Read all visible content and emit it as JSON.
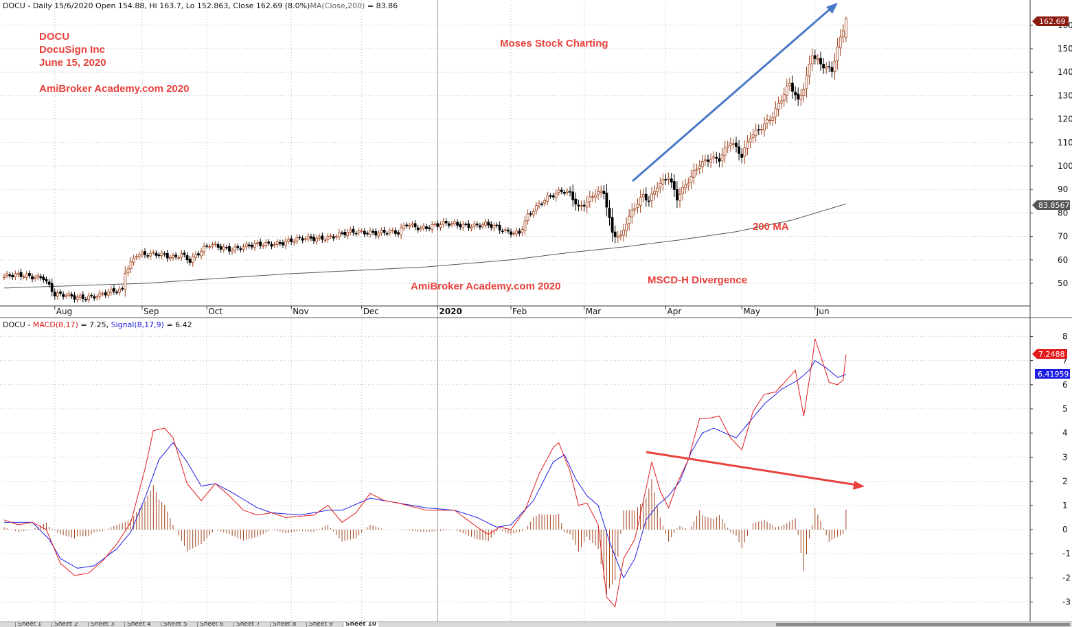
{
  "app": {
    "title": "AmiBroker"
  },
  "price_header": {
    "prefix": "DOCU - Daily 15/6/2020 Open 154.88, Hi 163.7, Lo 152.863, Close 162.69 (8.0%)",
    "ma_label": "MA(Close,200)",
    "ma_value": " = 83.86"
  },
  "macd_header": {
    "prefix": "DOCU - ",
    "macd_label": "MACD(8,17)",
    "macd_value": " = 7.25, ",
    "signal_label": "Signal(8,17,9)",
    "signal_value": " = 6.42"
  },
  "annotations": {
    "ticker": "DOCU",
    "company": "DocuSign Inc",
    "date": "June 15, 2020",
    "site_top": "AmiBroker Academy.com  2020",
    "center_top": "Moses Stock Charting",
    "site_bottom": "AmiBroker Academy.com 2020",
    "divergence": "MSCD-H Divergence",
    "ma_note": "200 MA"
  },
  "value_tags": {
    "last_price": "162.69",
    "ma200": "83.8567",
    "macd": "7.2488",
    "signal": "6.41959"
  },
  "colors": {
    "up_candle": "#a0401a",
    "down_candle": "#000000",
    "ma_line": "#555555",
    "macd_line": "#e31a1c",
    "signal_line": "#1c1ce3",
    "histogram": "#a0401a",
    "annotation": "#e8413c",
    "trend_arrow_up": "#4a78c8",
    "trend_arrow_down": "#e8413c",
    "price_tag": "#8b1a10",
    "ma_tag": "#555555",
    "macd_tag": "#e31a1c",
    "signal_tag": "#1c1ce3"
  },
  "sheet_tabs": [
    "Sheet 1",
    "Sheet 2",
    "Sheet 3",
    "Sheet 4",
    "Sheet 5",
    "Sheet 6",
    "Sheet 7",
    "Sheet 8",
    "Sheet 9",
    "Sheet 10"
  ],
  "chart_data": [
    {
      "type": "candlestick",
      "title": "DOCU - Daily 15/6/2020",
      "x_labels": [
        "Aug",
        "Sep",
        "Oct",
        "Nov",
        "Dec",
        "2020",
        "Feb",
        "Mar",
        "Apr",
        "May",
        "Jun"
      ],
      "y_ticks": [
        50,
        60,
        70,
        80,
        90,
        100,
        110,
        120,
        130,
        140,
        150,
        160
      ],
      "ylim": [
        40,
        170
      ],
      "grid": true,
      "series": [
        {
          "name": "DOCU",
          "kind": "ohlc_close_path",
          "x_range": [
            "2019-07-08",
            "2020-06-15"
          ],
          "close_knots": [
            [
              0,
              53
            ],
            [
              14,
              53
            ],
            [
              16,
              49
            ],
            [
              18,
              45
            ],
            [
              25,
              44
            ],
            [
              34,
              45
            ],
            [
              42,
              47
            ],
            [
              43,
              55
            ],
            [
              47,
              63
            ],
            [
              60,
              61
            ],
            [
              63,
              63
            ],
            [
              66,
              60
            ],
            [
              73,
              66
            ],
            [
              80,
              65
            ],
            [
              90,
              66
            ],
            [
              100,
              68
            ],
            [
              110,
              69
            ],
            [
              120,
              71
            ],
            [
              130,
              72
            ],
            [
              136,
              72
            ],
            [
              140,
              71
            ],
            [
              143,
              75
            ],
            [
              148,
              74
            ],
            [
              156,
              75
            ],
            [
              164,
              75
            ],
            [
              171,
              75
            ],
            [
              178,
              72
            ],
            [
              183,
              72
            ],
            [
              186,
              79
            ],
            [
              193,
              86
            ],
            [
              198,
              90
            ],
            [
              201,
              89
            ],
            [
              204,
              82
            ],
            [
              207,
              84
            ],
            [
              210,
              88
            ],
            [
              213,
              89
            ],
            [
              216,
              72
            ],
            [
              219,
              70
            ],
            [
              221,
              76
            ],
            [
              224,
              82
            ],
            [
              227,
              87
            ],
            [
              229,
              85
            ],
            [
              232,
              92
            ],
            [
              236,
              96
            ],
            [
              239,
              86
            ],
            [
              243,
              93
            ],
            [
              247,
              101
            ],
            [
              251,
              104
            ],
            [
              254,
              103
            ],
            [
              258,
              110
            ],
            [
              262,
              104
            ],
            [
              265,
              113
            ],
            [
              269,
              117
            ],
            [
              273,
              121
            ],
            [
              276,
              128
            ],
            [
              279,
              135
            ],
            [
              282,
              128
            ],
            [
              284,
              134
            ],
            [
              287,
              148
            ],
            [
              290,
              143
            ],
            [
              294,
              140
            ],
            [
              296,
              150
            ],
            [
              299,
              162.69
            ]
          ],
          "open": 154.88,
          "high": 163.7,
          "low": 152.863,
          "close": 162.69
        },
        {
          "name": "MA(Close,200)",
          "kind": "line",
          "x_range": [
            "2019-07-08",
            "2020-06-15"
          ],
          "knots": [
            [
              0,
              48
            ],
            [
              50,
              50
            ],
            [
              100,
              54
            ],
            [
              150,
              57
            ],
            [
              180,
              60
            ],
            [
              200,
              63
            ],
            [
              220,
              65.5
            ],
            [
              240,
              68.5
            ],
            [
              260,
              72
            ],
            [
              280,
              77
            ],
            [
              299,
              83.86
            ]
          ],
          "last": 83.86
        }
      ]
    },
    {
      "type": "line",
      "title": "MACD(8,17), Signal(8,17,9)",
      "y_ticks": [
        -3,
        -2,
        -1,
        0,
        1,
        2,
        3,
        4,
        5,
        6,
        7,
        8
      ],
      "ylim": [
        -3.6,
        8.6
      ],
      "grid": true,
      "series": [
        {
          "name": "MACD(8,17)",
          "knots": [
            [
              0,
              0.4
            ],
            [
              5,
              0.2
            ],
            [
              10,
              0.3
            ],
            [
              15,
              0
            ],
            [
              20,
              -1.4
            ],
            [
              25,
              -1.9
            ],
            [
              30,
              -1.8
            ],
            [
              35,
              -1.3
            ],
            [
              40,
              -0.6
            ],
            [
              45,
              0.3
            ],
            [
              50,
              2.5
            ],
            [
              53,
              4.1
            ],
            [
              57,
              4.2
            ],
            [
              60,
              3.8
            ],
            [
              65,
              1.9
            ],
            [
              70,
              1.2
            ],
            [
              75,
              1.9
            ],
            [
              80,
              1.4
            ],
            [
              85,
              0.8
            ],
            [
              90,
              0.6
            ],
            [
              95,
              0.7
            ],
            [
              100,
              0.5
            ],
            [
              110,
              0.6
            ],
            [
              115,
              1
            ],
            [
              120,
              0.3
            ],
            [
              125,
              0.7
            ],
            [
              130,
              1.5
            ],
            [
              135,
              1.2
            ],
            [
              140,
              1.1
            ],
            [
              150,
              0.8
            ],
            [
              160,
              0.8
            ],
            [
              168,
              0.1
            ],
            [
              172,
              -0.2
            ],
            [
              176,
              0.1
            ],
            [
              180,
              0
            ],
            [
              185,
              0.8
            ],
            [
              190,
              2.3
            ],
            [
              195,
              3.4
            ],
            [
              197,
              3.6
            ],
            [
              201,
              2.4
            ],
            [
              204,
              1
            ],
            [
              207,
              1.1
            ],
            [
              211,
              0.2
            ],
            [
              214,
              -2.8
            ],
            [
              217,
              -3.2
            ],
            [
              220,
              -1.2
            ],
            [
              224,
              -0.4
            ],
            [
              228,
              1.7
            ],
            [
              230,
              2.8
            ],
            [
              233,
              1.6
            ],
            [
              236,
              0.9
            ],
            [
              239,
              1.9
            ],
            [
              243,
              2.9
            ],
            [
              247,
              4.6
            ],
            [
              250,
              4.6
            ],
            [
              254,
              4.7
            ],
            [
              258,
              3.8
            ],
            [
              262,
              3.3
            ],
            [
              266,
              4.9
            ],
            [
              270,
              5.6
            ],
            [
              274,
              5.7
            ],
            [
              278,
              6.2
            ],
            [
              281,
              6.6
            ],
            [
              284,
              4.7
            ],
            [
              287,
              7
            ],
            [
              288,
              7.9
            ],
            [
              290,
              7.2
            ],
            [
              293,
              6.1
            ],
            [
              296,
              6
            ],
            [
              298,
              6.2
            ],
            [
              299,
              7.25
            ]
          ]
        },
        {
          "name": "Signal(8,17,9)",
          "knots": [
            [
              0,
              0.3
            ],
            [
              10,
              0.3
            ],
            [
              16,
              -0.4
            ],
            [
              20,
              -1.2
            ],
            [
              26,
              -1.6
            ],
            [
              32,
              -1.5
            ],
            [
              40,
              -0.8
            ],
            [
              45,
              -0.1
            ],
            [
              50,
              1.3
            ],
            [
              55,
              2.9
            ],
            [
              60,
              3.6
            ],
            [
              65,
              2.8
            ],
            [
              70,
              1.8
            ],
            [
              75,
              1.9
            ],
            [
              80,
              1.6
            ],
            [
              90,
              0.9
            ],
            [
              95,
              0.7
            ],
            [
              105,
              0.6
            ],
            [
              115,
              0.8
            ],
            [
              120,
              0.8
            ],
            [
              130,
              1.3
            ],
            [
              140,
              1.1
            ],
            [
              150,
              0.9
            ],
            [
              160,
              0.8
            ],
            [
              168,
              0.5
            ],
            [
              175,
              0.1
            ],
            [
              180,
              0.2
            ],
            [
              188,
              1.2
            ],
            [
              195,
              2.8
            ],
            [
              199,
              3.1
            ],
            [
              203,
              2.1
            ],
            [
              207,
              1.4
            ],
            [
              211,
              1
            ],
            [
              215,
              -0.5
            ],
            [
              220,
              -2
            ],
            [
              224,
              -1.2
            ],
            [
              228,
              0.4
            ],
            [
              232,
              1
            ],
            [
              236,
              1.4
            ],
            [
              240,
              2
            ],
            [
              244,
              3.2
            ],
            [
              248,
              4
            ],
            [
              252,
              4.2
            ],
            [
              256,
              4
            ],
            [
              260,
              3.8
            ],
            [
              265,
              4.5
            ],
            [
              270,
              5.2
            ],
            [
              276,
              5.8
            ],
            [
              282,
              6.2
            ],
            [
              286,
              6.6
            ],
            [
              288,
              7
            ],
            [
              292,
              6.7
            ],
            [
              296,
              6.3
            ],
            [
              299,
              6.42
            ]
          ]
        },
        {
          "name": "Histogram",
          "kind": "bar",
          "derived": "MACD - Signal"
        }
      ],
      "last": {
        "macd": 7.25,
        "signal": 6.42
      }
    }
  ]
}
